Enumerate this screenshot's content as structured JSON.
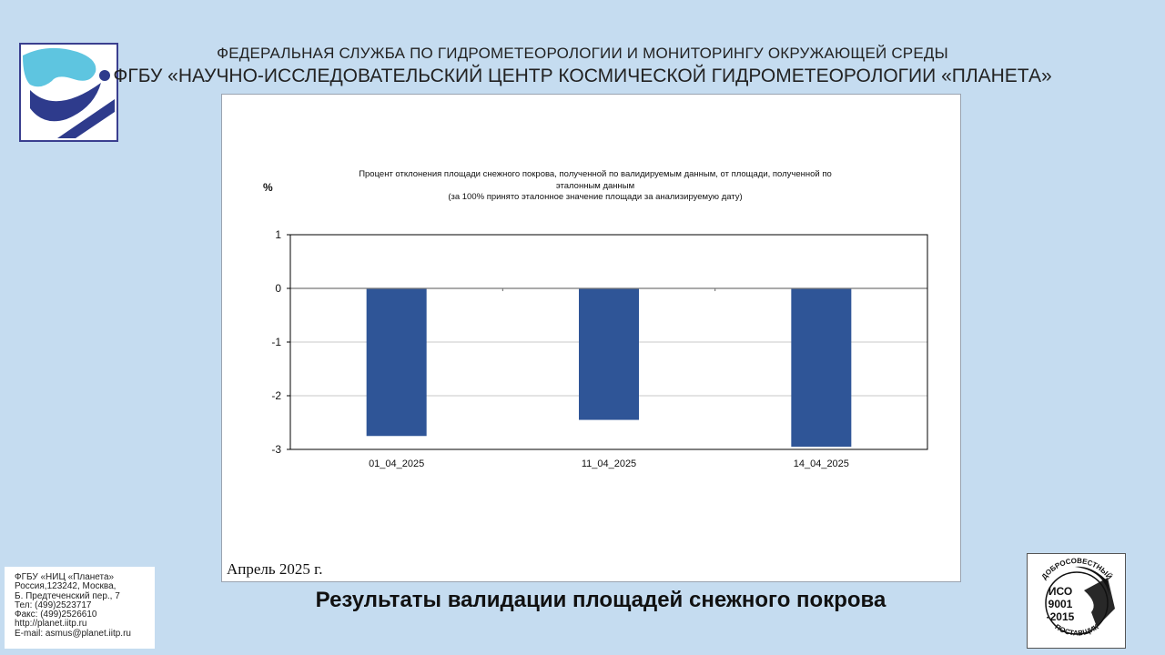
{
  "header": {
    "line1": "ФЕДЕРАЛЬНАЯ СЛУЖБА ПО ГИДРОМЕТЕОРОЛОГИИ И МОНИТОРИНГУ ОКРУЖАЮЩЕЙ СРЕДЫ",
    "line2": "ФГБУ «НАУЧНО-ИССЛЕДОВАТЕЛЬСКИЙ ЦЕНТР КОСМИЧЕСКОЙ ГИДРОМЕТЕОРОЛОГИИ «ПЛАНЕТА»"
  },
  "chart": {
    "title_lines": [
      "Процент отклонения площади снежного покрова, полученной по валидируемым данным, от площади, полученной по",
      "эталонным данным",
      "(за 100% принято эталонное значение площади за анализируемую дату)"
    ],
    "unit": "%",
    "period": "Апрель  2025 г."
  },
  "chart_data": {
    "type": "bar",
    "categories": [
      "01_04_2025",
      "11_04_2025",
      "14_04_2025"
    ],
    "values": [
      -2.75,
      -2.45,
      -2.95
    ],
    "ylim": [
      -3,
      1
    ],
    "yticks": [
      1,
      0,
      -1,
      -2,
      -3
    ],
    "grid": true,
    "bar_color": "#2f5597"
  },
  "footer": {
    "title": "Результаты валидации площадей снежного покрова"
  },
  "contact": {
    "lines": [
      "ФГБУ «НИЦ «Планета»",
      "Россия,123242, Москва,",
      "Б. Предтеченский пер., 7",
      "Тел:    (499)2523717",
      "Факс: (499)2526610",
      "http://planet.iitp.ru",
      "E-mail: asmus@planet.iitp.ru"
    ]
  },
  "certificate": {
    "top_text": "ДОБРОСОВЕСТНЫЙ",
    "bottom_text": "ПОСТАВЩИК",
    "line1": "ИСО",
    "line2": "9001",
    "line3": "-2015"
  }
}
